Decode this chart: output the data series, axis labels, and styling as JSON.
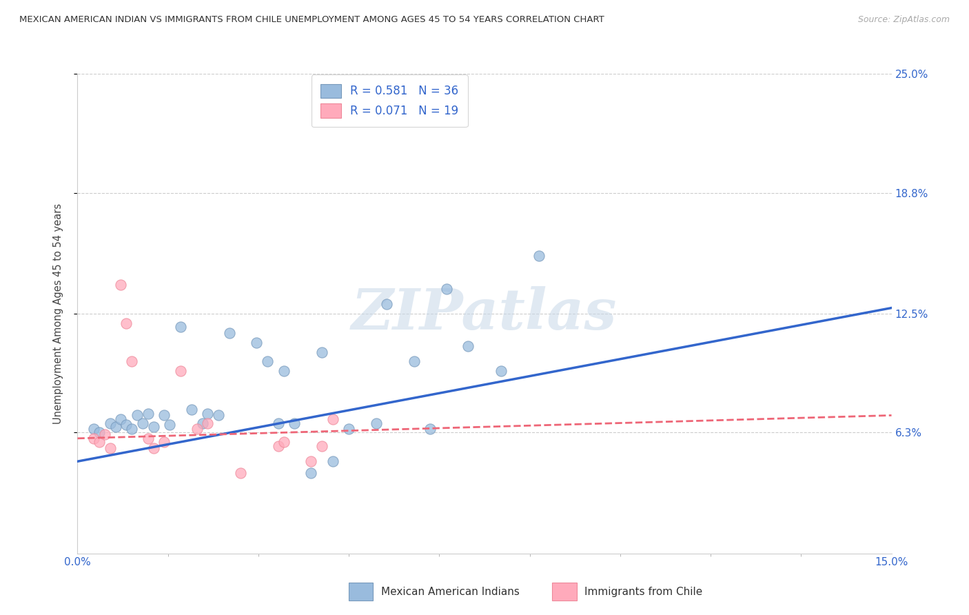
{
  "title": "MEXICAN AMERICAN INDIAN VS IMMIGRANTS FROM CHILE UNEMPLOYMENT AMONG AGES 45 TO 54 YEARS CORRELATION CHART",
  "source": "Source: ZipAtlas.com",
  "ylabel": "Unemployment Among Ages 45 to 54 years",
  "xmin": 0.0,
  "xmax": 0.15,
  "ymin": 0.0,
  "ymax": 0.25,
  "yticks": [
    0.063,
    0.125,
    0.188,
    0.25
  ],
  "ytick_labels": [
    "6.3%",
    "12.5%",
    "18.8%",
    "25.0%"
  ],
  "xticks_major": [
    0.0,
    0.15
  ],
  "xtick_major_labels": [
    "0.0%",
    "15.0%"
  ],
  "xticks_minor": [
    0.01667,
    0.03333,
    0.05,
    0.06667,
    0.08333,
    0.1,
    0.11667,
    0.13333
  ],
  "background_color": "#ffffff",
  "grid_color": "#cccccc",
  "watermark": "ZIPatlas",
  "blue_R": 0.581,
  "blue_N": 36,
  "pink_R": 0.071,
  "pink_N": 19,
  "blue_color": "#99bbdd",
  "pink_color": "#ffaabb",
  "blue_marker_edge": "#7799bb",
  "pink_marker_edge": "#ee8899",
  "blue_line_color": "#3366cc",
  "pink_line_color": "#ee6677",
  "blue_scatter": [
    [
      0.003,
      0.065
    ],
    [
      0.004,
      0.063
    ],
    [
      0.006,
      0.068
    ],
    [
      0.007,
      0.066
    ],
    [
      0.008,
      0.07
    ],
    [
      0.009,
      0.067
    ],
    [
      0.01,
      0.065
    ],
    [
      0.011,
      0.072
    ],
    [
      0.012,
      0.068
    ],
    [
      0.013,
      0.073
    ],
    [
      0.014,
      0.066
    ],
    [
      0.016,
      0.072
    ],
    [
      0.017,
      0.067
    ],
    [
      0.019,
      0.118
    ],
    [
      0.021,
      0.075
    ],
    [
      0.023,
      0.068
    ],
    [
      0.024,
      0.073
    ],
    [
      0.026,
      0.072
    ],
    [
      0.028,
      0.115
    ],
    [
      0.033,
      0.11
    ],
    [
      0.035,
      0.1
    ],
    [
      0.037,
      0.068
    ],
    [
      0.038,
      0.095
    ],
    [
      0.04,
      0.068
    ],
    [
      0.043,
      0.042
    ],
    [
      0.045,
      0.105
    ],
    [
      0.047,
      0.048
    ],
    [
      0.05,
      0.065
    ],
    [
      0.055,
      0.068
    ],
    [
      0.057,
      0.13
    ],
    [
      0.062,
      0.1
    ],
    [
      0.065,
      0.065
    ],
    [
      0.068,
      0.138
    ],
    [
      0.072,
      0.108
    ],
    [
      0.078,
      0.095
    ],
    [
      0.085,
      0.155
    ]
  ],
  "pink_scatter": [
    [
      0.003,
      0.06
    ],
    [
      0.004,
      0.058
    ],
    [
      0.005,
      0.062
    ],
    [
      0.006,
      0.055
    ],
    [
      0.008,
      0.14
    ],
    [
      0.009,
      0.12
    ],
    [
      0.01,
      0.1
    ],
    [
      0.013,
      0.06
    ],
    [
      0.014,
      0.055
    ],
    [
      0.016,
      0.058
    ],
    [
      0.019,
      0.095
    ],
    [
      0.022,
      0.065
    ],
    [
      0.024,
      0.068
    ],
    [
      0.03,
      0.042
    ],
    [
      0.037,
      0.056
    ],
    [
      0.038,
      0.058
    ],
    [
      0.043,
      0.048
    ],
    [
      0.045,
      0.056
    ],
    [
      0.047,
      0.07
    ]
  ],
  "blue_trend_x": [
    0.0,
    0.15
  ],
  "blue_trend_y": [
    0.048,
    0.128
  ],
  "pink_trend_x": [
    0.0,
    0.15
  ],
  "pink_trend_y": [
    0.06,
    0.072
  ]
}
